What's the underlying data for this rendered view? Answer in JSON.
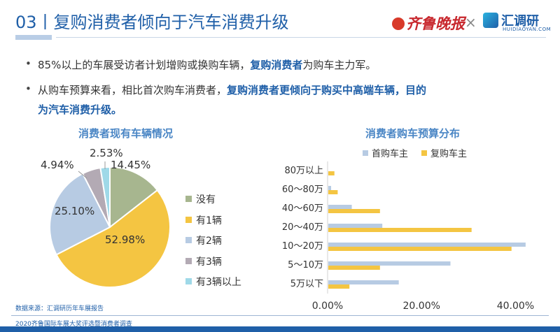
{
  "header": {
    "title": "03丨复购消费者倾向于汽车消费升级",
    "logo1_text": "齐鲁晚报",
    "separator": "×",
    "logo2_text": "汇调研",
    "logo2_sub": "HUIDIAOYAN.COM"
  },
  "bullets": {
    "b1_pre": "85%以上的车展受访者计划增购或换购车辆，",
    "b1_hl": "复购消费者",
    "b1_post": "为购车主力军。",
    "b2_pre": "从购车预算来看，相比首次购车消费者，",
    "b2_hl": "复购消费者更倾向于购买中高端车辆，目的",
    "b3_hl": "为汽车消费升级。"
  },
  "footer": {
    "source": "数据来源：汇调研历年车展报告",
    "survey": "2020齐鲁国际车展大奖评选暨消费者调查"
  },
  "colors": {
    "accent": "#1f5fa8",
    "pie_none": "#a7b68f",
    "pie_one": "#f4c542",
    "pie_two": "#b7cbe3",
    "pie_three": "#b3aab4",
    "pie_threeplus": "#9fd9e8",
    "first_buyer": "#b7cbe3",
    "repeat_buyer": "#f4c542"
  },
  "chart_data": [
    {
      "type": "pie",
      "title": "消费者现有车辆情况",
      "categories": [
        "没有",
        "有1辆",
        "有2辆",
        "有3辆",
        "有3辆以上"
      ],
      "values": [
        14.45,
        52.98,
        25.1,
        4.94,
        2.53
      ],
      "labels": [
        "14.45%",
        "52.98%",
        "25.10%",
        "4.94%",
        "2.53%"
      ],
      "legend": "right"
    },
    {
      "type": "bar",
      "orientation": "horizontal",
      "title": "消费者购车预算分布",
      "categories": [
        "80万以上",
        "60～80万",
        "40～60万",
        "20～40万",
        "10～20万",
        "5～10万",
        "5万以下"
      ],
      "series": [
        {
          "name": "首购车主",
          "values": [
            0.0,
            0.6,
            5.0,
            11.5,
            42.0,
            26.0,
            15.0
          ]
        },
        {
          "name": "复购车主",
          "values": [
            1.3,
            2.0,
            11.0,
            30.5,
            39.0,
            11.0,
            4.5
          ]
        }
      ],
      "xlim": [
        0,
        45
      ],
      "xticks": [
        "0.00%",
        "20.00%",
        "40.00%"
      ],
      "legend": "top",
      "grid": false
    }
  ]
}
